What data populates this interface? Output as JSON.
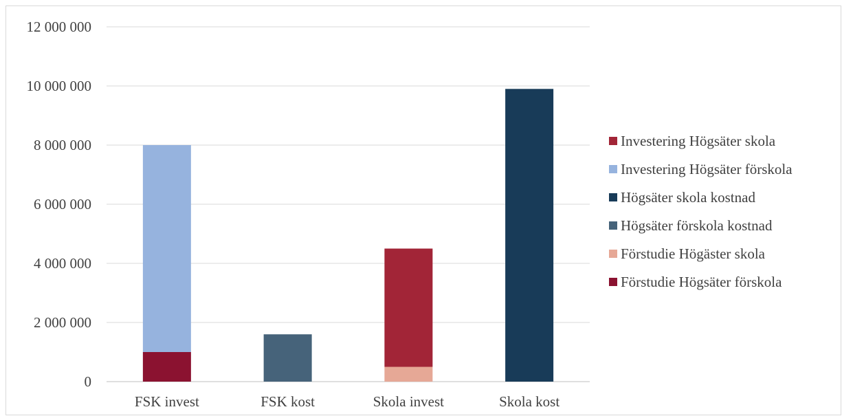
{
  "chart_data": {
    "type": "bar",
    "stacked": true,
    "categories": [
      "FSK invest",
      "FSK kost",
      "Skola invest",
      "Skola kost"
    ],
    "ylim": [
      0,
      12000000
    ],
    "yticks": [
      0,
      2000000,
      4000000,
      6000000,
      8000000,
      10000000,
      12000000
    ],
    "ytick_labels": [
      "0",
      "2 000 000",
      "4 000 000",
      "6 000 000",
      "8 000 000",
      "10 000 000",
      "12 000 000"
    ],
    "grid": true,
    "legend_position": "right",
    "series": [
      {
        "name": "Förstudie Högsäter förskola",
        "color": "#8b1230",
        "values": [
          1000000,
          0,
          0,
          0
        ]
      },
      {
        "name": "Förstudie Högäster skola",
        "color": "#e6a896",
        "values": [
          0,
          0,
          500000,
          0
        ]
      },
      {
        "name": "Högsäter förskola kostnad",
        "color": "#46637a",
        "values": [
          0,
          1600000,
          0,
          0
        ]
      },
      {
        "name": "Högsäter skola kostnad",
        "color": "#183b58",
        "values": [
          0,
          0,
          0,
          9900000
        ]
      },
      {
        "name": "Investering Högsäter förskola",
        "color": "#96b3de",
        "values": [
          7000000,
          0,
          0,
          0
        ]
      },
      {
        "name": "Investering Högsäter skola",
        "color": "#a22537",
        "values": [
          0,
          0,
          4000000,
          0
        ]
      }
    ],
    "legend_order": [
      "Investering Högsäter skola",
      "Investering Högsäter förskola",
      "Högsäter skola kostnad",
      "Högsäter förskola kostnad",
      "Förstudie Högäster skola",
      "Förstudie Högsäter förskola"
    ]
  }
}
